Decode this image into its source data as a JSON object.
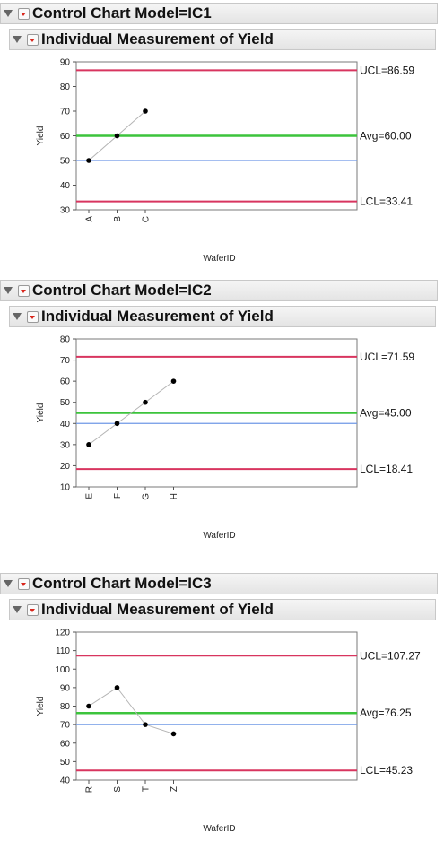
{
  "charts": [
    {
      "outer_title": "Control Chart Model=IC1",
      "inner_title": "Individual Measurement of Yield",
      "ylabel": "Yield",
      "xlabel": "WaferID",
      "ucl_label": "UCL=86.59",
      "avg_label": "Avg=60.00",
      "lcl_label": "LCL=33.41"
    },
    {
      "outer_title": "Control Chart Model=IC2",
      "inner_title": "Individual Measurement of Yield",
      "ylabel": "Yield",
      "xlabel": "WaferID",
      "ucl_label": "UCL=71.59",
      "avg_label": "Avg=45.00",
      "lcl_label": "LCL=18.41"
    },
    {
      "outer_title": "Control Chart Model=IC3",
      "inner_title": "Individual Measurement of Yield",
      "ylabel": "Yield",
      "xlabel": "WaferID",
      "ucl_label": "UCL=107.27",
      "avg_label": "Avg=76.25",
      "lcl_label": "LCL=45.23"
    }
  ],
  "colors": {
    "ucl": "#d8355f",
    "avg": "#3cc43c",
    "center": "#6f98e6",
    "line": "#b4b4b4",
    "point": "#000000"
  },
  "chart_data": [
    {
      "type": "line",
      "title": "Individual Measurement of Yield",
      "xlabel": "WaferID",
      "ylabel": "Yield",
      "categories": [
        "A",
        "B",
        "C"
      ],
      "values": [
        50,
        60,
        70
      ],
      "ylim": [
        30,
        90
      ],
      "yticks": [
        30,
        40,
        50,
        60,
        70,
        80,
        90
      ],
      "ucl": 86.59,
      "avg": 60.0,
      "lcl": 33.41,
      "center": 50
    },
    {
      "type": "line",
      "title": "Individual Measurement of Yield",
      "xlabel": "WaferID",
      "ylabel": "Yield",
      "categories": [
        "E",
        "F",
        "G",
        "H"
      ],
      "values": [
        30,
        40,
        50,
        60
      ],
      "ylim": [
        10,
        80
      ],
      "yticks": [
        10,
        20,
        30,
        40,
        50,
        60,
        70,
        80
      ],
      "ucl": 71.59,
      "avg": 45.0,
      "lcl": 18.41,
      "center": 40
    },
    {
      "type": "line",
      "title": "Individual Measurement of Yield",
      "xlabel": "WaferID",
      "ylabel": "Yield",
      "categories": [
        "R",
        "S",
        "T",
        "Z"
      ],
      "values": [
        80,
        90,
        70,
        65
      ],
      "ylim": [
        40,
        120
      ],
      "yticks": [
        40,
        50,
        60,
        70,
        80,
        90,
        100,
        110,
        120
      ],
      "ucl": 107.27,
      "avg": 76.25,
      "lcl": 45.23,
      "center": 70
    }
  ]
}
